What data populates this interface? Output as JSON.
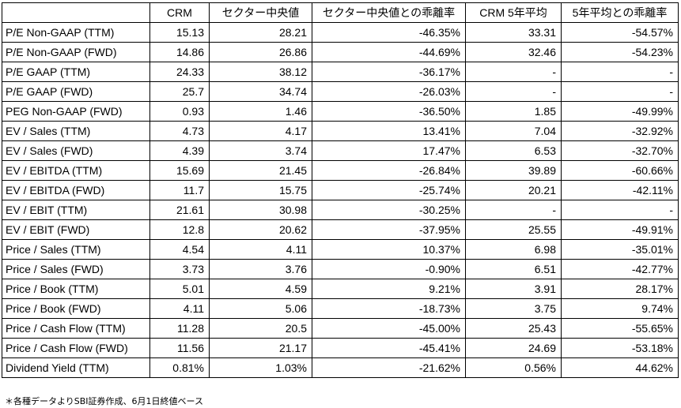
{
  "table": {
    "headers": [
      "",
      "CRM",
      "セクター中央値",
      "セクター中央値との乖離率",
      "CRM 5年平均",
      "5年平均との乖離率"
    ],
    "rows": [
      [
        "P/E Non-GAAP (TTM)",
        "15.13",
        "28.21",
        "-46.35%",
        "33.31",
        "-54.57%"
      ],
      [
        "P/E Non-GAAP (FWD)",
        "14.86",
        "26.86",
        "-44.69%",
        "32.46",
        "-54.23%"
      ],
      [
        "P/E GAAP (TTM)",
        "24.33",
        "38.12",
        "-36.17%",
        "-",
        "-"
      ],
      [
        "P/E GAAP (FWD)",
        "25.7",
        "34.74",
        "-26.03%",
        "-",
        "-"
      ],
      [
        "PEG Non-GAAP (FWD)",
        "0.93",
        "1.46",
        "-36.50%",
        "1.85",
        "-49.99%"
      ],
      [
        "EV / Sales (TTM)",
        "4.73",
        "4.17",
        "13.41%",
        "7.04",
        "-32.92%"
      ],
      [
        "EV / Sales (FWD)",
        "4.39",
        "3.74",
        "17.47%",
        "6.53",
        "-32.70%"
      ],
      [
        "EV / EBITDA (TTM)",
        "15.69",
        "21.45",
        "-26.84%",
        "39.89",
        "-60.66%"
      ],
      [
        "EV / EBITDA (FWD)",
        "11.7",
        "15.75",
        "-25.74%",
        "20.21",
        "-42.11%"
      ],
      [
        "EV / EBIT (TTM)",
        "21.61",
        "30.98",
        "-30.25%",
        "-",
        "-"
      ],
      [
        "EV / EBIT (FWD)",
        "12.8",
        "20.62",
        "-37.95%",
        "25.55",
        "-49.91%"
      ],
      [
        "Price / Sales (TTM)",
        "4.54",
        "4.11",
        "10.37%",
        "6.98",
        "-35.01%"
      ],
      [
        "Price / Sales (FWD)",
        "3.73",
        "3.76",
        "-0.90%",
        "6.51",
        "-42.77%"
      ],
      [
        "Price / Book (TTM)",
        "5.01",
        "4.59",
        "9.21%",
        "3.91",
        "28.17%"
      ],
      [
        "Price / Book (FWD)",
        "4.11",
        "5.06",
        "-18.73%",
        "3.75",
        "9.74%"
      ],
      [
        "Price / Cash Flow (TTM)",
        "11.28",
        "20.5",
        "-45.00%",
        "25.43",
        "-55.65%"
      ],
      [
        "Price / Cash Flow (FWD)",
        "11.56",
        "21.17",
        "-45.41%",
        "24.69",
        "-53.18%"
      ],
      [
        "Dividend Yield (TTM)",
        "0.81%",
        "1.03%",
        "-21.62%",
        "0.56%",
        "44.62%"
      ]
    ]
  },
  "footnote": "＊各種データよりSBI証券作成、6月1日終値ベース"
}
